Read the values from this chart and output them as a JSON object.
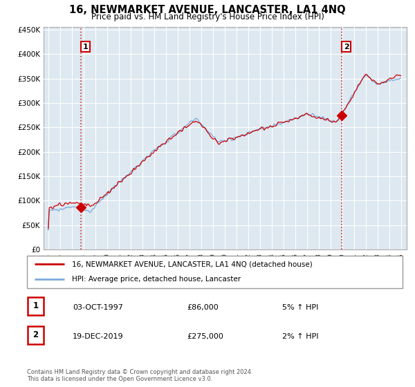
{
  "title": "16, NEWMARKET AVENUE, LANCASTER, LA1 4NQ",
  "subtitle": "Price paid vs. HM Land Registry's House Price Index (HPI)",
  "ylabel_values": [
    0,
    50000,
    100000,
    150000,
    200000,
    250000,
    300000,
    350000,
    400000,
    450000
  ],
  "ylabel_labels": [
    "£0",
    "£50K",
    "£100K",
    "£150K",
    "£200K",
    "£250K",
    "£300K",
    "£350K",
    "£400K",
    "£450K"
  ],
  "sale1_year": 1997.75,
  "sale1_price": 86000,
  "sale2_year": 2019.96,
  "sale2_price": 275000,
  "line1_color": "#cc0000",
  "line2_color": "#7aaadd",
  "marker_color": "#cc0000",
  "vline_color": "#cc0000",
  "grid_color": "#cccccc",
  "plot_bg_color": "#dde8f0",
  "legend1_label": "16, NEWMARKET AVENUE, LANCASTER, LA1 4NQ (detached house)",
  "legend2_label": "HPI: Average price, detached house, Lancaster",
  "footnote": "Contains HM Land Registry data © Crown copyright and database right 2024.\nThis data is licensed under the Open Government Licence v3.0.",
  "table_rows": [
    {
      "num": "1",
      "date": "03-OCT-1997",
      "price": "£86,000",
      "hpi": "5% ↑ HPI"
    },
    {
      "num": "2",
      "date": "19-DEC-2019",
      "price": "£275,000",
      "hpi": "2% ↑ HPI"
    }
  ]
}
